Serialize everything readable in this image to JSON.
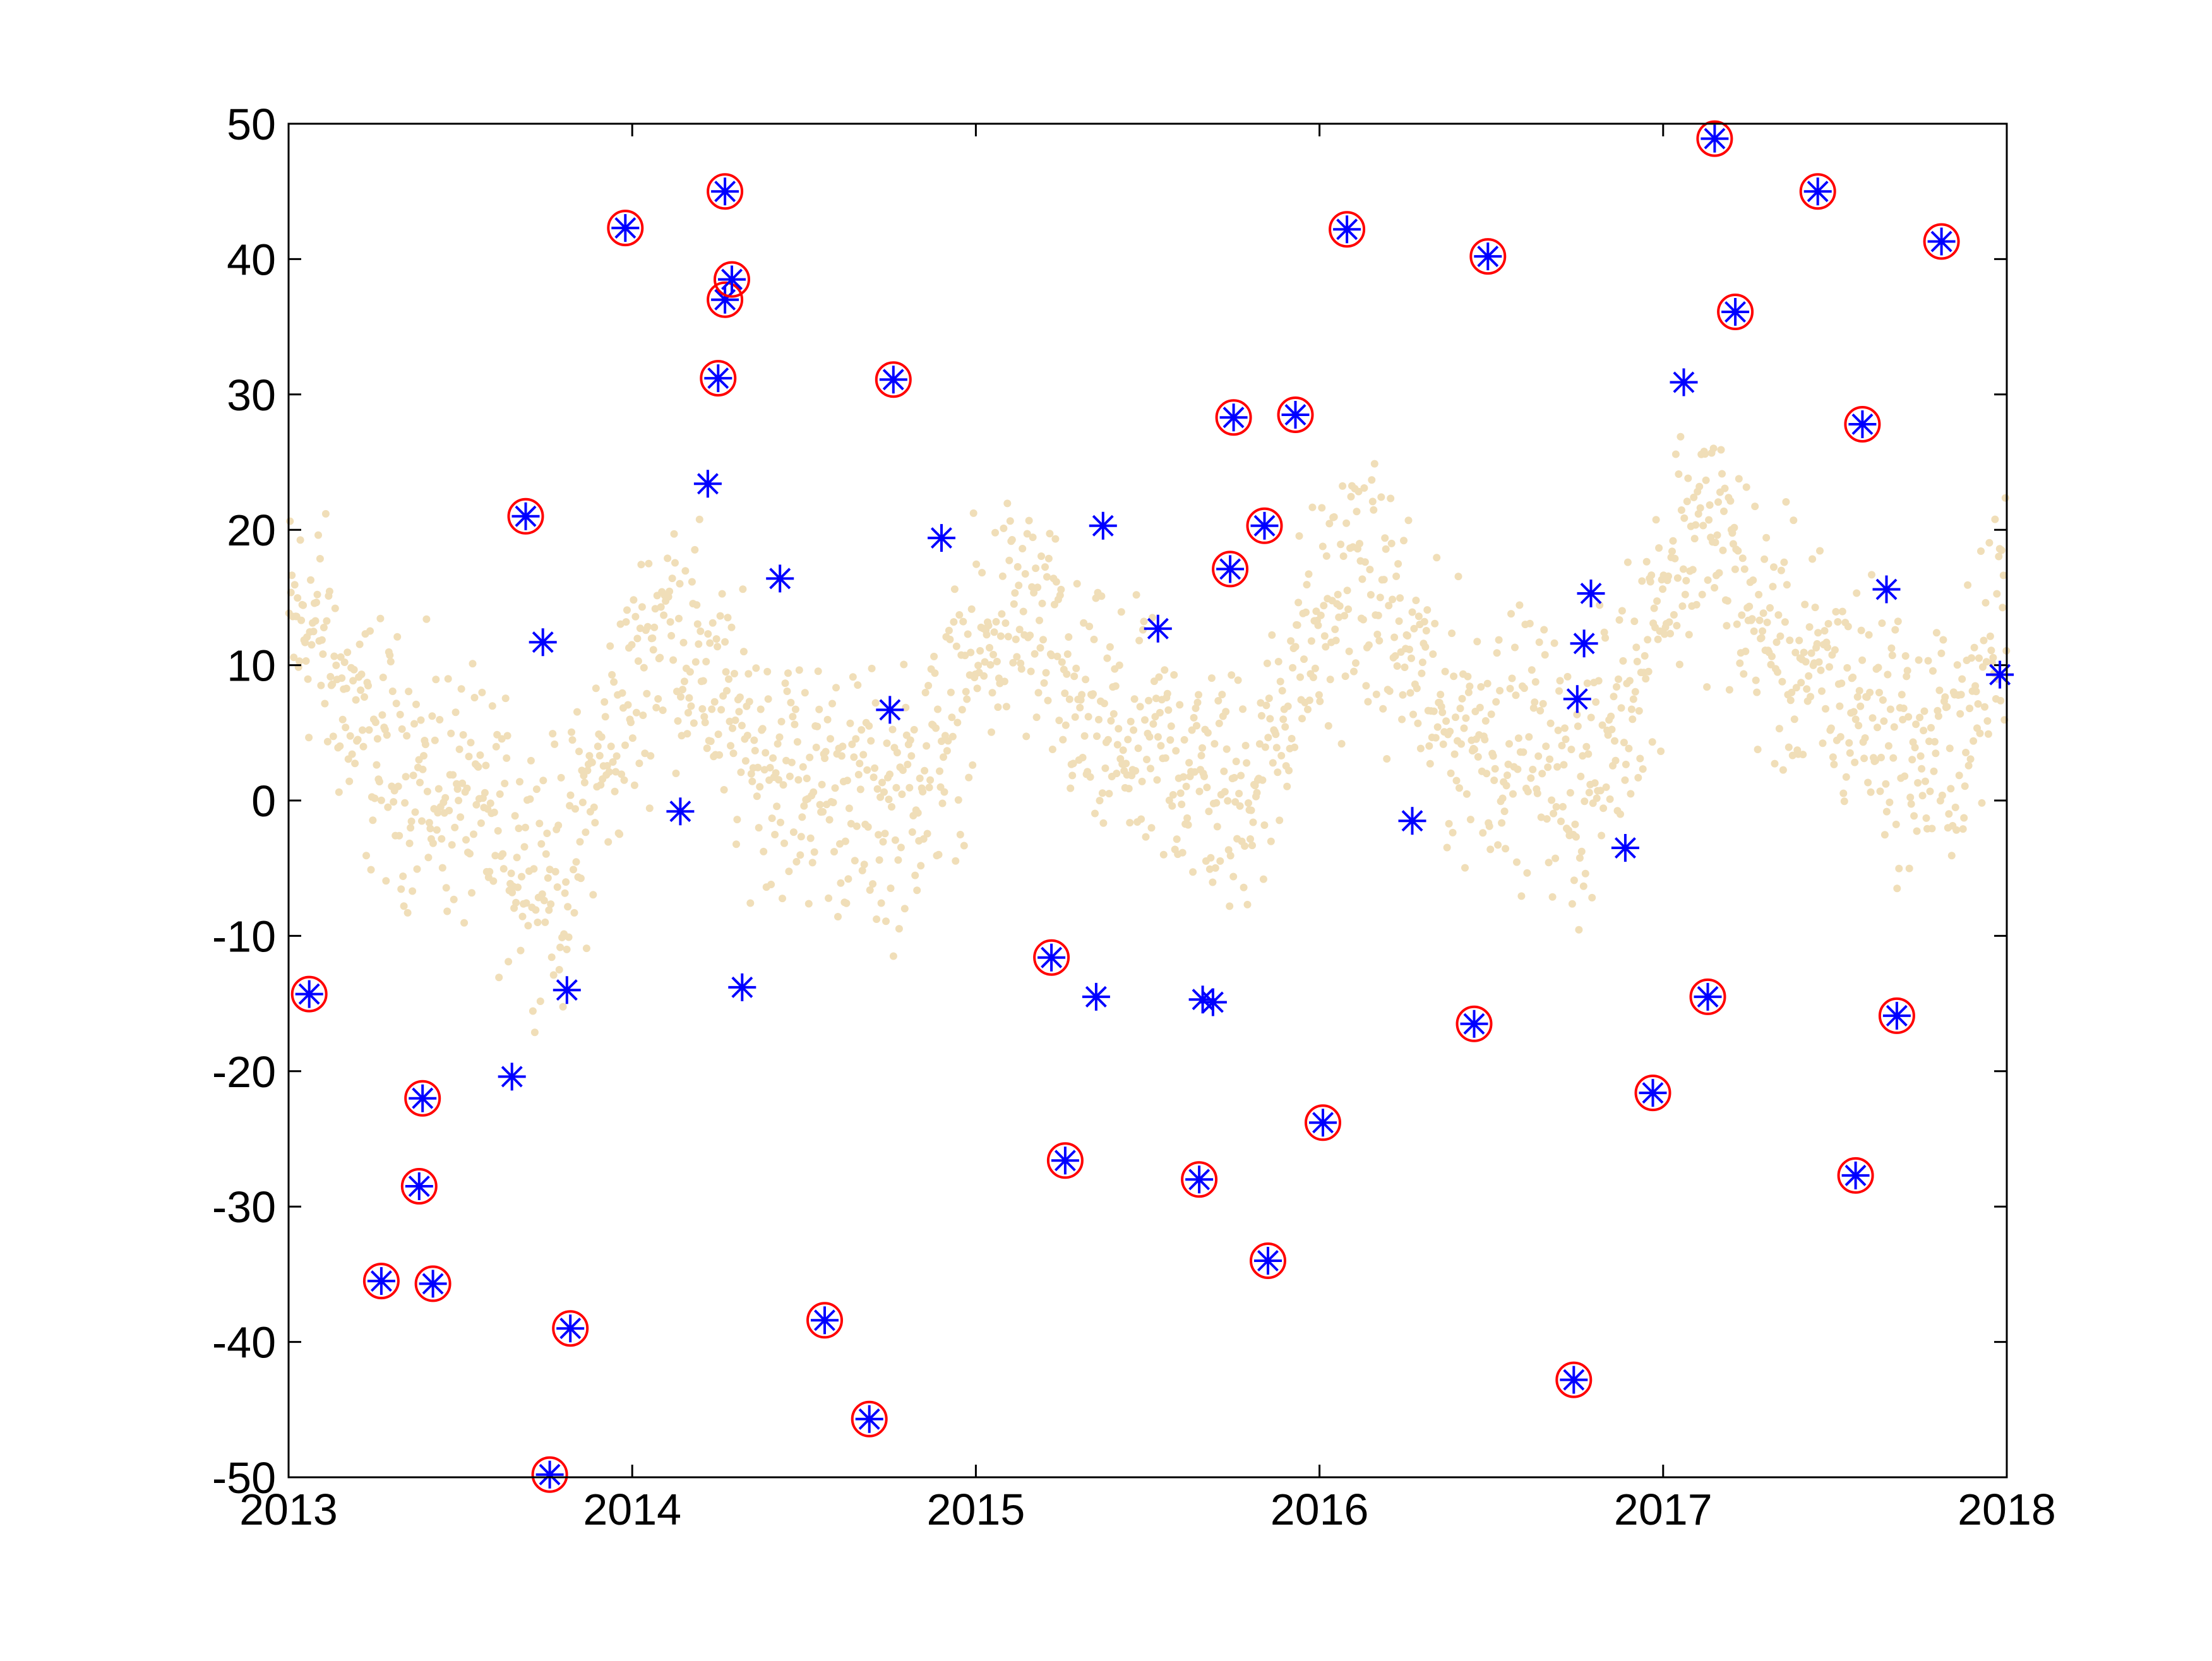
{
  "colors": {
    "background": "#ffffff",
    "axes": "#000000",
    "cloud": "#f0deb8",
    "marker_star": "#0000ff",
    "marker_circle": "#ff0000"
  },
  "chart_data": {
    "type": "scatter",
    "title": "",
    "xlabel": "",
    "ylabel": "",
    "xlim": [
      2013,
      2018
    ],
    "ylim": [
      -50,
      50
    ],
    "x_ticks": [
      "2013",
      "2014",
      "2015",
      "2016",
      "2017",
      "2018"
    ],
    "y_ticks": [
      "-50",
      "-40",
      "-30",
      "-20",
      "-10",
      "0",
      "10",
      "20",
      "30",
      "40",
      "50"
    ],
    "grid": false,
    "legend": "none",
    "background_cloud": {
      "description_of_trend": "noisy seasonal daily series",
      "knots": [
        [
          2013.0,
          13
        ],
        [
          2013.08,
          13
        ],
        [
          2013.2,
          5
        ],
        [
          2013.35,
          2
        ],
        [
          2013.5,
          0
        ],
        [
          2013.65,
          -3
        ],
        [
          2013.8,
          -6
        ],
        [
          2013.9,
          2
        ],
        [
          2014.0,
          8
        ],
        [
          2014.1,
          14
        ],
        [
          2014.2,
          10
        ],
        [
          2014.3,
          5
        ],
        [
          2014.45,
          2
        ],
        [
          2014.6,
          1
        ],
        [
          2014.75,
          -1
        ],
        [
          2014.9,
          4
        ],
        [
          2015.0,
          10
        ],
        [
          2015.1,
          14
        ],
        [
          2015.2,
          12
        ],
        [
          2015.3,
          6
        ],
        [
          2015.45,
          4
        ],
        [
          2015.6,
          3
        ],
        [
          2015.75,
          0
        ],
        [
          2015.85,
          3
        ],
        [
          2015.93,
          10
        ],
        [
          2016.1,
          17
        ],
        [
          2016.25,
          12
        ],
        [
          2016.35,
          6
        ],
        [
          2016.5,
          5
        ],
        [
          2016.65,
          4
        ],
        [
          2016.75,
          0
        ],
        [
          2016.85,
          5
        ],
        [
          2016.95,
          12
        ],
        [
          2017.05,
          19
        ],
        [
          2017.15,
          20
        ],
        [
          2017.3,
          12
        ],
        [
          2017.45,
          9
        ],
        [
          2017.6,
          7
        ],
        [
          2017.75,
          3
        ],
        [
          2017.9,
          6
        ],
        [
          2018.0,
          16
        ]
      ],
      "points_per_year": 365,
      "noise_amplitude": 5
    },
    "series": [
      {
        "marker": "circled-asterisk",
        "points": [
          [
            2013.06,
            -14.3
          ],
          [
            2013.27,
            -35.5
          ],
          [
            2013.38,
            -28.5
          ],
          [
            2013.39,
            -22.0
          ],
          [
            2013.42,
            -35.7
          ],
          [
            2013.69,
            21.0
          ],
          [
            2013.76,
            -49.8
          ],
          [
            2013.82,
            -39.0
          ],
          [
            2013.98,
            42.3
          ],
          [
            2014.25,
            31.2
          ],
          [
            2014.27,
            37.0
          ],
          [
            2014.27,
            45.0
          ],
          [
            2014.29,
            38.5
          ],
          [
            2014.56,
            -38.4
          ],
          [
            2014.69,
            -45.7
          ],
          [
            2014.76,
            31.1
          ],
          [
            2015.22,
            -11.6
          ],
          [
            2015.26,
            -26.6
          ],
          [
            2015.65,
            -28.0
          ],
          [
            2015.74,
            17.1
          ],
          [
            2015.75,
            28.3
          ],
          [
            2015.84,
            20.3
          ],
          [
            2015.85,
            -34.0
          ],
          [
            2015.93,
            28.5
          ],
          [
            2016.01,
            -23.8
          ],
          [
            2016.08,
            42.2
          ],
          [
            2016.45,
            -16.5
          ],
          [
            2016.49,
            40.2
          ],
          [
            2016.74,
            -42.8
          ],
          [
            2016.97,
            -21.6
          ],
          [
            2017.13,
            -14.5
          ],
          [
            2017.15,
            48.9
          ],
          [
            2017.21,
            36.1
          ],
          [
            2017.45,
            45.0
          ],
          [
            2017.56,
            -27.7
          ],
          [
            2017.58,
            27.8
          ],
          [
            2017.68,
            -15.9
          ],
          [
            2017.81,
            41.3
          ]
        ]
      },
      {
        "marker": "asterisk",
        "points": [
          [
            2013.65,
            -20.4
          ],
          [
            2013.74,
            11.7
          ],
          [
            2013.81,
            -14.0
          ],
          [
            2014.14,
            -0.8
          ],
          [
            2014.22,
            23.4
          ],
          [
            2014.32,
            -13.8
          ],
          [
            2014.43,
            16.4
          ],
          [
            2014.75,
            6.7
          ],
          [
            2014.9,
            19.4
          ],
          [
            2015.35,
            -14.5
          ],
          [
            2015.37,
            20.3
          ],
          [
            2015.53,
            12.7
          ],
          [
            2015.66,
            -14.7
          ],
          [
            2015.69,
            -14.9
          ],
          [
            2016.27,
            -1.5
          ],
          [
            2016.75,
            7.5
          ],
          [
            2016.77,
            11.6
          ],
          [
            2016.79,
            15.3
          ],
          [
            2016.89,
            -3.5
          ],
          [
            2017.06,
            30.9
          ],
          [
            2017.65,
            15.6
          ],
          [
            2017.98,
            9.3
          ]
        ]
      }
    ]
  }
}
